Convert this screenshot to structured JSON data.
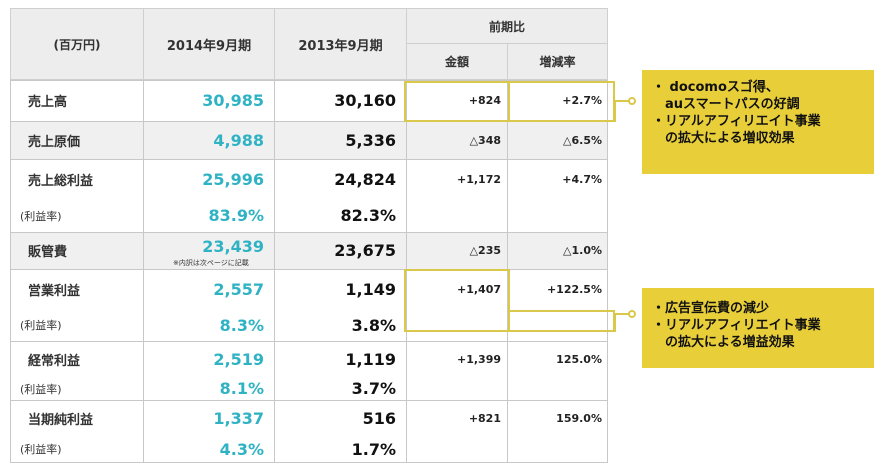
{
  "header": {
    "unit": "(百万円)",
    "col_2014": "2014年9月期",
    "col_2013": "2013年9月期",
    "comparison": "前期比",
    "amount": "金額",
    "rate": "増減率"
  },
  "rows": [
    {
      "label": "売上高",
      "v2014": "30,985",
      "v2013": "30,160",
      "amount": "+824",
      "rate": "+2.7%"
    },
    {
      "label": "売上原価",
      "v2014": "4,988",
      "v2013": "5,336",
      "amount": "△348",
      "rate": "△6.5%"
    },
    {
      "label": "売上総利益",
      "v2014": "25,996",
      "v2013": "24,824",
      "amount": "+1,172",
      "rate": "+4.7%"
    },
    {
      "label": "(利益率)",
      "v2014": "83.9%",
      "v2013": "82.3%"
    },
    {
      "label": "販管費",
      "v2014": "23,439",
      "v2013": "23,675",
      "amount": "△235",
      "rate": "△1.0%",
      "note": "※内訳は次ページに記載"
    },
    {
      "label": "営業利益",
      "v2014": "2,557",
      "v2013": "1,149",
      "amount": "+1,407",
      "rate": "+122.5%"
    },
    {
      "label": "(利益率)",
      "v2014": "8.3%",
      "v2013": "3.8%"
    },
    {
      "label": "経常利益",
      "v2014": "2,519",
      "v2013": "1,119",
      "amount": "+1,399",
      "rate": "125.0%"
    },
    {
      "label": "(利益率)",
      "v2014": "8.1%",
      "v2013": "3.7%"
    },
    {
      "label": "当期純利益",
      "v2014": "1,337",
      "v2013": "516",
      "amount": "+821",
      "rate": "159.0%"
    },
    {
      "label": "(利益率)",
      "v2014": "4.3%",
      "v2013": "1.7%"
    }
  ],
  "callouts": [
    {
      "lines": [
        "・ docomoスゴ得、",
        "　auスマートパスの好調",
        "・リアルアフィリエイト事業",
        "　の拡大による増収効果"
      ]
    },
    {
      "lines": [
        "・広告宣伝費の減少",
        "・リアルアフィリエイト事業",
        "　の拡大による増益効果"
      ]
    }
  ],
  "colors": {
    "accent_teal": "#2fb3c4",
    "highlight_yellow": "#e8cf3a"
  }
}
